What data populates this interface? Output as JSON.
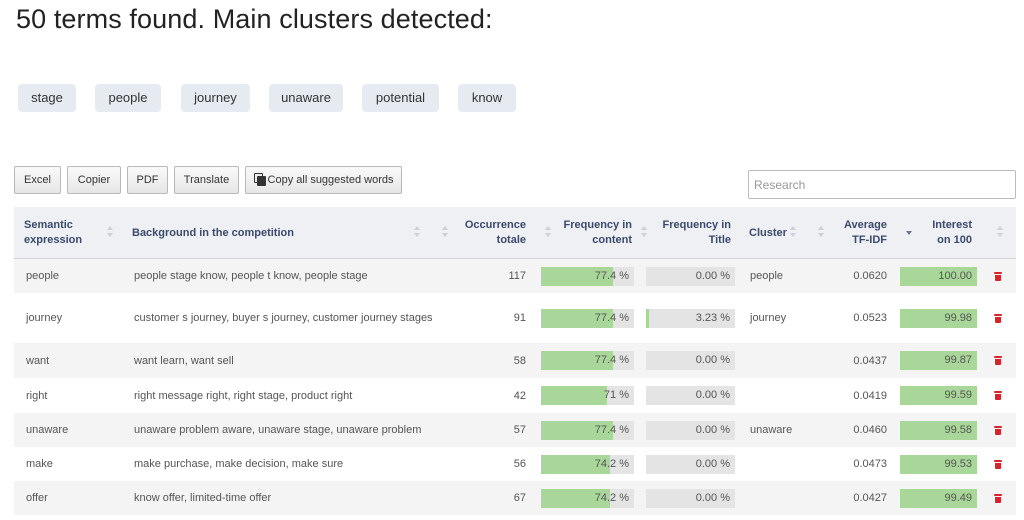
{
  "title": "50 terms found. Main clusters detected:",
  "clusters": [
    "stage",
    "people",
    "journey",
    "unaware",
    "potential",
    "know"
  ],
  "toolbar": {
    "excel": "Excel",
    "copier": "Copier",
    "pdf": "PDF",
    "translate": "Translate",
    "copy_all": "Copy all suggested words"
  },
  "search": {
    "placeholder": "Research",
    "value": ""
  },
  "headers": {
    "semantic": "Semantic expression",
    "background": "Background in the competition",
    "occurrence": "Occurrence totale",
    "freq_content": "Frequency in content",
    "freq_title": "Frequency in Title",
    "cluster": "Cluster",
    "tfidf": "Average TF-IDF",
    "interest": "Interest on 100"
  },
  "icons": {
    "delete": "trash-icon",
    "copy": "copy-icon"
  },
  "colors": {
    "bar_fill": "#a9d79a",
    "bar_track": "#e4e4e4",
    "delete": "#d9232c"
  },
  "rows": [
    {
      "term": "people",
      "background": "people stage know, people t know, people stage",
      "occurrence": "117",
      "freq_content": "77.4 %",
      "freq_content_pct": 77.4,
      "freq_title": "0.00 %",
      "freq_title_pct": 0,
      "cluster": "people",
      "tfidf": "0.0620",
      "interest": "100.00"
    },
    {
      "term": "journey",
      "background": "customer s journey, buyer s journey, customer journey stages",
      "occurrence": "91",
      "freq_content": "77.4 %",
      "freq_content_pct": 77.4,
      "freq_title": "3.23 %",
      "freq_title_pct": 3.23,
      "cluster": "journey",
      "tfidf": "0.0523",
      "interest": "99.98"
    },
    {
      "term": "want",
      "background": "want learn, want sell",
      "occurrence": "58",
      "freq_content": "77.4 %",
      "freq_content_pct": 77.4,
      "freq_title": "0.00 %",
      "freq_title_pct": 0,
      "cluster": "",
      "tfidf": "0.0437",
      "interest": "99.87"
    },
    {
      "term": "right",
      "background": "right message right, right stage, product right",
      "occurrence": "42",
      "freq_content": "71 %",
      "freq_content_pct": 71,
      "freq_title": "0.00 %",
      "freq_title_pct": 0,
      "cluster": "",
      "tfidf": "0.0419",
      "interest": "99.59"
    },
    {
      "term": "unaware",
      "background": "unaware problem aware, unaware stage, unaware problem",
      "occurrence": "57",
      "freq_content": "77.4 %",
      "freq_content_pct": 77.4,
      "freq_title": "0.00 %",
      "freq_title_pct": 0,
      "cluster": "unaware",
      "tfidf": "0.0460",
      "interest": "99.58"
    },
    {
      "term": "make",
      "background": "make purchase, make decision, make sure",
      "occurrence": "56",
      "freq_content": "74.2 %",
      "freq_content_pct": 74.2,
      "freq_title": "0.00 %",
      "freq_title_pct": 0,
      "cluster": "",
      "tfidf": "0.0473",
      "interest": "99.53"
    },
    {
      "term": "offer",
      "background": "know offer, limited-time offer",
      "occurrence": "67",
      "freq_content": "74.2 %",
      "freq_content_pct": 74.2,
      "freq_title": "0.00 %",
      "freq_title_pct": 0,
      "cluster": "",
      "tfidf": "0.0427",
      "interest": "99.49"
    }
  ]
}
